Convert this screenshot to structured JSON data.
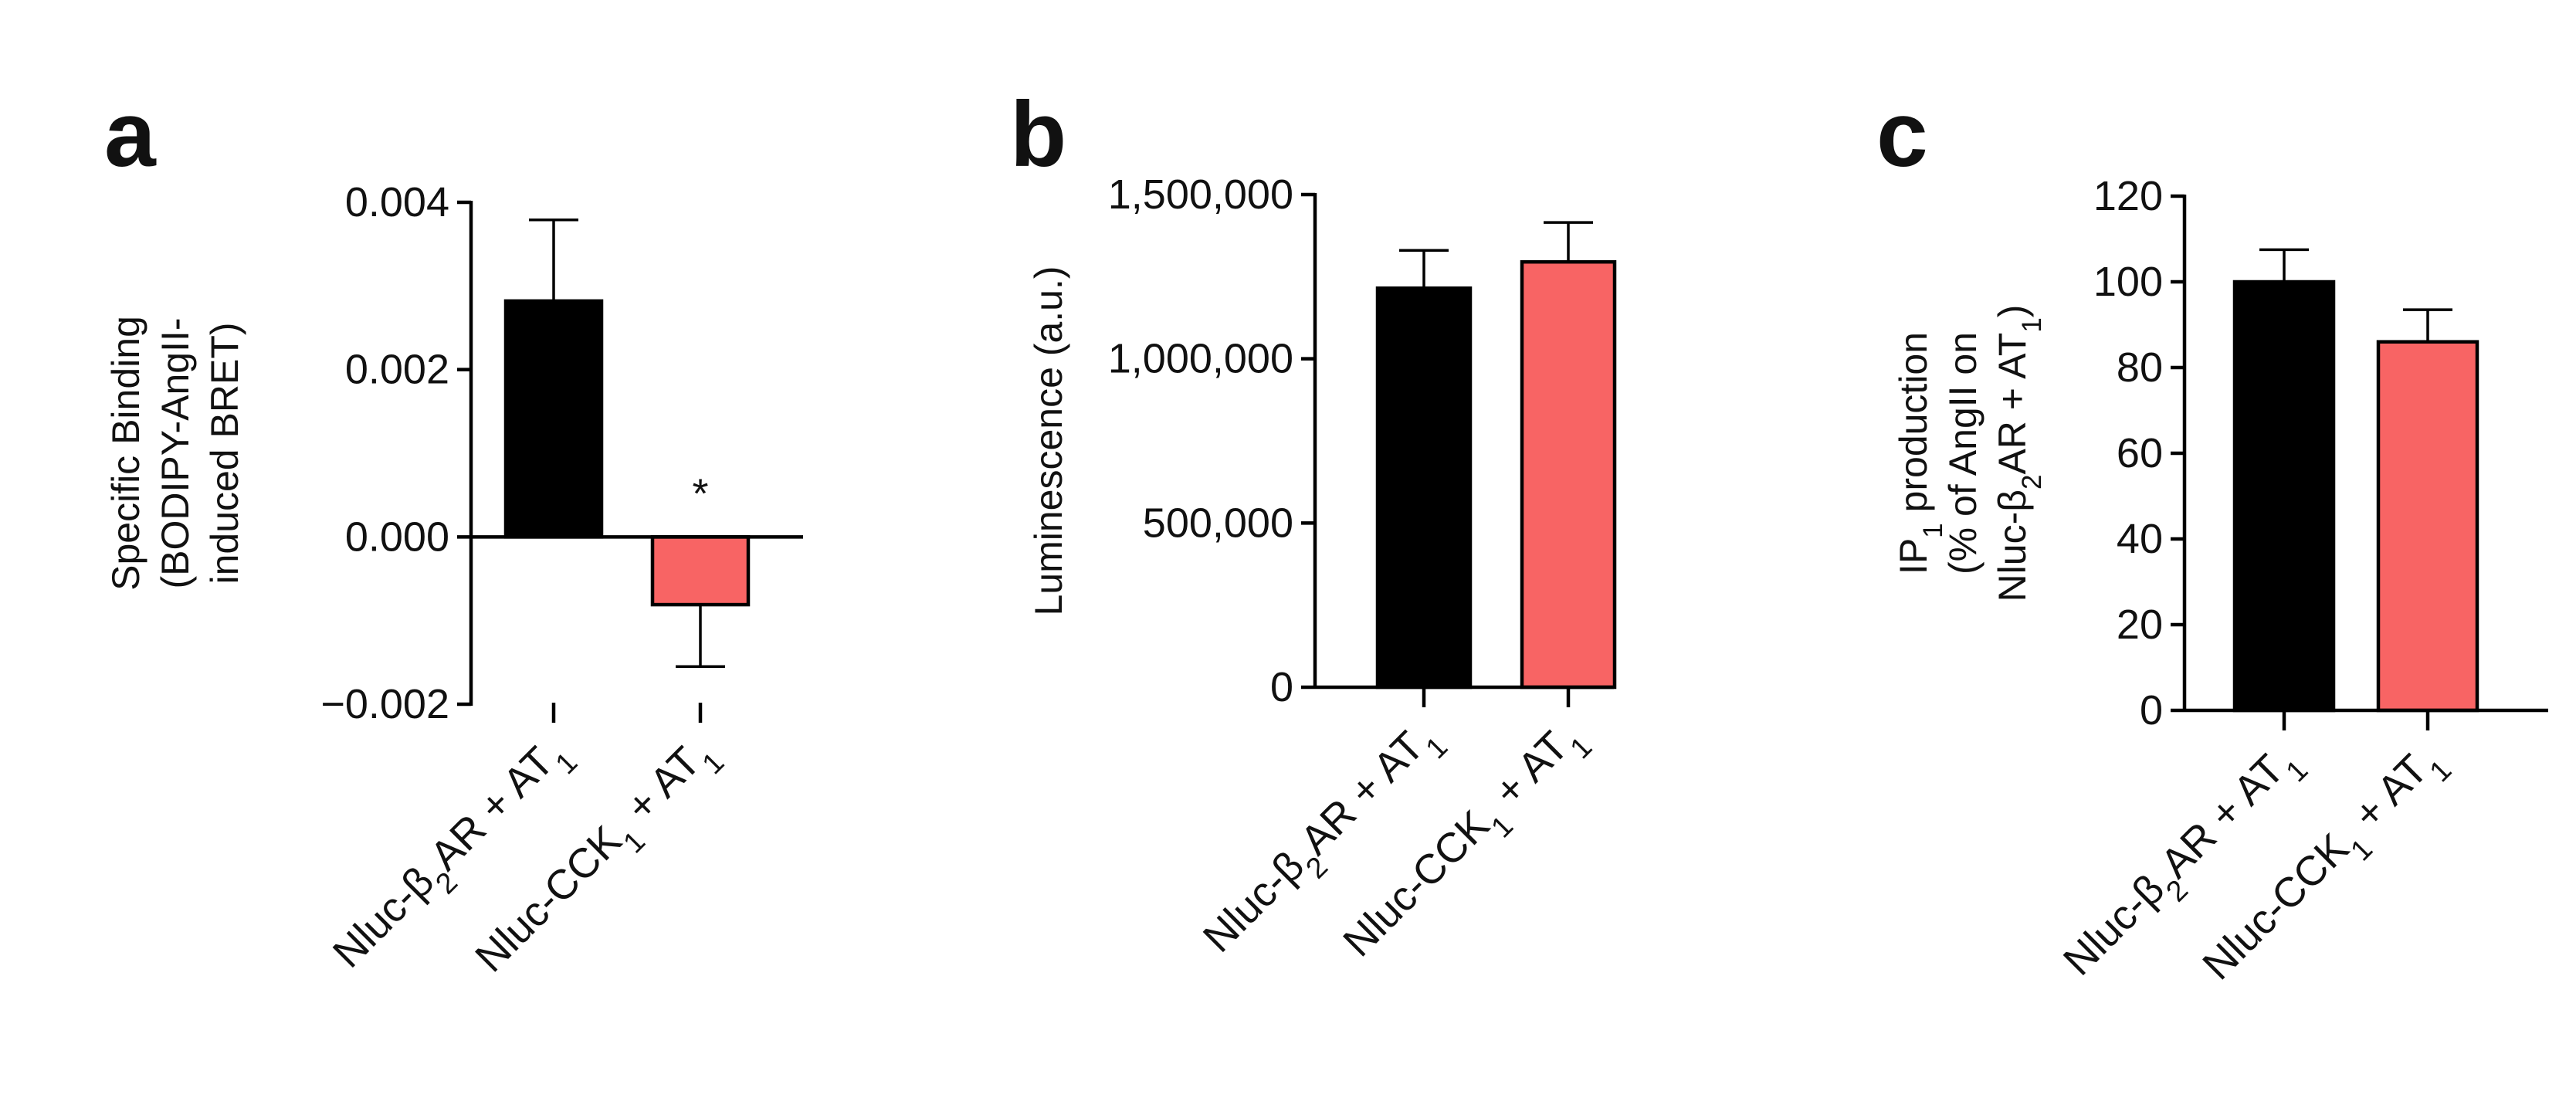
{
  "chart_data": [
    {
      "panel": "a",
      "type": "bar",
      "ylabel": [
        "Specific Binding",
        "(BODIPY-AngII-",
        "induced BRET)"
      ],
      "ylim": [
        -0.002,
        0.004
      ],
      "yticks": [
        -0.002,
        0.0,
        0.002,
        0.004
      ],
      "ytick_labels": [
        "−0.002",
        "0.000",
        "0.002",
        "0.004"
      ],
      "categories": [
        {
          "parts": [
            {
              "t": "Nluc-β"
            },
            {
              "t": "2",
              "sub": true
            },
            {
              "t": "AR + AT"
            },
            {
              "t": "1",
              "sub": true
            }
          ]
        },
        {
          "parts": [
            {
              "t": "Nluc-CCK"
            },
            {
              "t": "1",
              "sub": true
            },
            {
              "t": " + AT"
            },
            {
              "t": "1",
              "sub": true
            }
          ]
        }
      ],
      "values": [
        0.00282,
        -0.00081
      ],
      "errors": [
        0.00097,
        0.00074
      ],
      "colors": [
        "#000000",
        "#f86464"
      ],
      "annotations": [
        {
          "category": 1,
          "text": "*"
        }
      ]
    },
    {
      "panel": "b",
      "type": "bar",
      "ylabel": [
        "Luminescence (a.u.)"
      ],
      "ylim": [
        0,
        1500000
      ],
      "yticks": [
        0,
        500000,
        1000000,
        1500000
      ],
      "ytick_labels": [
        "0",
        "500,000",
        "1,000,000",
        "1,500,000"
      ],
      "categories": [
        {
          "parts": [
            {
              "t": "Nluc-β"
            },
            {
              "t": "2",
              "sub": true
            },
            {
              "t": "AR + AT"
            },
            {
              "t": "1",
              "sub": true
            }
          ]
        },
        {
          "parts": [
            {
              "t": "Nluc-CCK"
            },
            {
              "t": "1",
              "sub": true
            },
            {
              "t": " + AT"
            },
            {
              "t": "1",
              "sub": true
            }
          ]
        }
      ],
      "values": [
        1215000,
        1295000
      ],
      "errors": [
        115000,
        120000
      ],
      "colors": [
        "#000000",
        "#f86464"
      ],
      "annotations": []
    },
    {
      "panel": "c",
      "type": "bar",
      "ylabel": [
        [
          {
            "t": "IP"
          },
          {
            "t": "1",
            "sub": true
          },
          {
            "t": " production"
          }
        ],
        [
          {
            "t": "(% of AngII on"
          }
        ],
        [
          {
            "t": "Nluc-β"
          },
          {
            "t": "2",
            "sub": true
          },
          {
            "t": "AR + AT"
          },
          {
            "t": "1",
            "sub": true
          },
          {
            "t": ")"
          }
        ]
      ],
      "ylim": [
        0,
        120
      ],
      "yticks": [
        0,
        20,
        40,
        60,
        80,
        100,
        120
      ],
      "ytick_labels": [
        "0",
        "20",
        "40",
        "60",
        "80",
        "100",
        "120"
      ],
      "categories": [
        {
          "parts": [
            {
              "t": "Nluc-β"
            },
            {
              "t": "2",
              "sub": true
            },
            {
              "t": "AR + AT"
            },
            {
              "t": "1",
              "sub": true
            }
          ]
        },
        {
          "parts": [
            {
              "t": "Nluc-CCK"
            },
            {
              "t": "1",
              "sub": true
            },
            {
              "t": " + AT"
            },
            {
              "t": "1",
              "sub": true
            }
          ]
        }
      ],
      "values": [
        100,
        86
      ],
      "errors": [
        7.5,
        7.5
      ],
      "colors": [
        "#000000",
        "#f86464"
      ],
      "annotations": []
    }
  ]
}
